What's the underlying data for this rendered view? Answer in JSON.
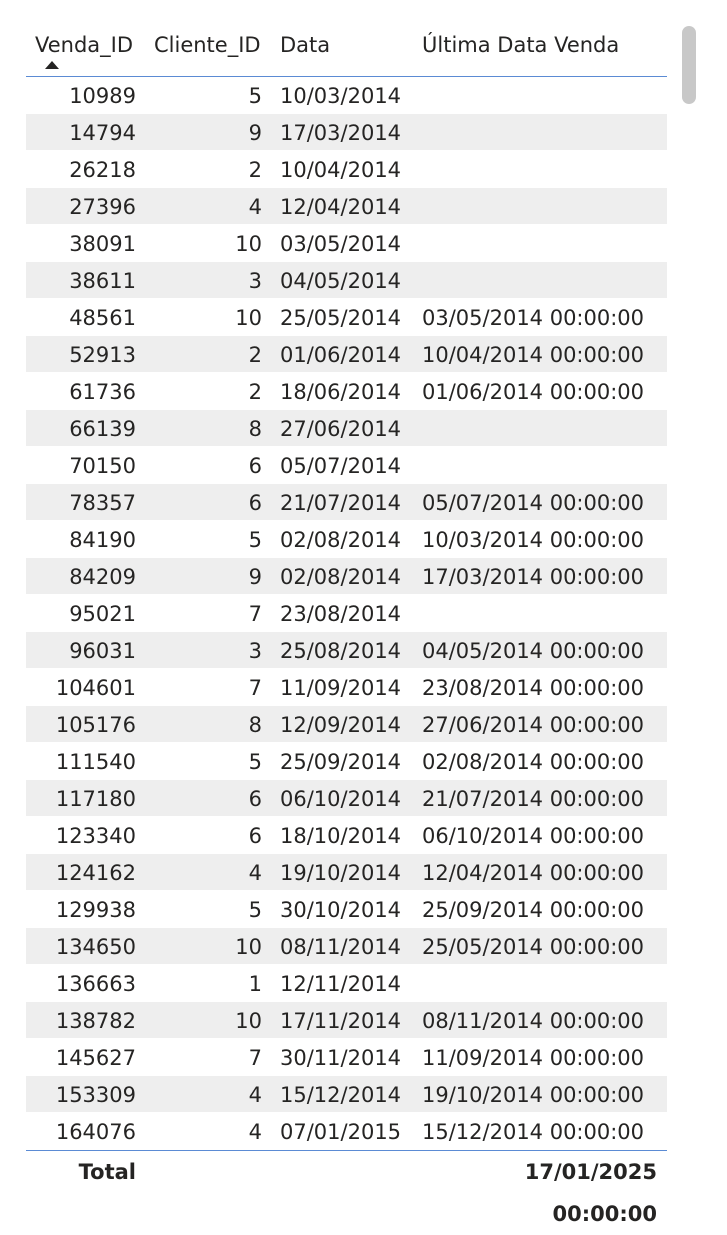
{
  "table": {
    "columns": [
      "Venda_ID",
      "Cliente_ID",
      "Data",
      "Última Data Venda"
    ],
    "sort": {
      "column": "Venda_ID",
      "direction": "ascending",
      "icon": "sort-ascending-icon"
    },
    "rows": [
      [
        "10989",
        "5",
        "10/03/2014",
        ""
      ],
      [
        "14794",
        "9",
        "17/03/2014",
        ""
      ],
      [
        "26218",
        "2",
        "10/04/2014",
        ""
      ],
      [
        "27396",
        "4",
        "12/04/2014",
        ""
      ],
      [
        "38091",
        "10",
        "03/05/2014",
        ""
      ],
      [
        "38611",
        "3",
        "04/05/2014",
        ""
      ],
      [
        "48561",
        "10",
        "25/05/2014",
        "03/05/2014 00:00:00"
      ],
      [
        "52913",
        "2",
        "01/06/2014",
        "10/04/2014 00:00:00"
      ],
      [
        "61736",
        "2",
        "18/06/2014",
        "01/06/2014 00:00:00"
      ],
      [
        "66139",
        "8",
        "27/06/2014",
        ""
      ],
      [
        "70150",
        "6",
        "05/07/2014",
        ""
      ],
      [
        "78357",
        "6",
        "21/07/2014",
        "05/07/2014 00:00:00"
      ],
      [
        "84190",
        "5",
        "02/08/2014",
        "10/03/2014 00:00:00"
      ],
      [
        "84209",
        "9",
        "02/08/2014",
        "17/03/2014 00:00:00"
      ],
      [
        "95021",
        "7",
        "23/08/2014",
        ""
      ],
      [
        "96031",
        "3",
        "25/08/2014",
        "04/05/2014 00:00:00"
      ],
      [
        "104601",
        "7",
        "11/09/2014",
        "23/08/2014 00:00:00"
      ],
      [
        "105176",
        "8",
        "12/09/2014",
        "27/06/2014 00:00:00"
      ],
      [
        "111540",
        "5",
        "25/09/2014",
        "02/08/2014 00:00:00"
      ],
      [
        "117180",
        "6",
        "06/10/2014",
        "21/07/2014 00:00:00"
      ],
      [
        "123340",
        "6",
        "18/10/2014",
        "06/10/2014 00:00:00"
      ],
      [
        "124162",
        "4",
        "19/10/2014",
        "12/04/2014 00:00:00"
      ],
      [
        "129938",
        "5",
        "30/10/2014",
        "25/09/2014 00:00:00"
      ],
      [
        "134650",
        "10",
        "08/11/2014",
        "25/05/2014 00:00:00"
      ],
      [
        "136663",
        "1",
        "12/11/2014",
        ""
      ],
      [
        "138782",
        "10",
        "17/11/2014",
        "08/11/2014 00:00:00"
      ],
      [
        "145627",
        "7",
        "30/11/2014",
        "11/09/2014 00:00:00"
      ],
      [
        "153309",
        "4",
        "15/12/2014",
        "19/10/2014 00:00:00"
      ],
      [
        "164076",
        "4",
        "07/01/2015",
        "15/12/2014 00:00:00"
      ]
    ],
    "total": {
      "label": "Total",
      "value": "17/01/2025 00:00:00"
    }
  },
  "colors": {
    "accent": "#5b8bd4",
    "row_alt": "#eeeeee",
    "text": "#252423",
    "scrollbar": "#c8c8c8"
  }
}
